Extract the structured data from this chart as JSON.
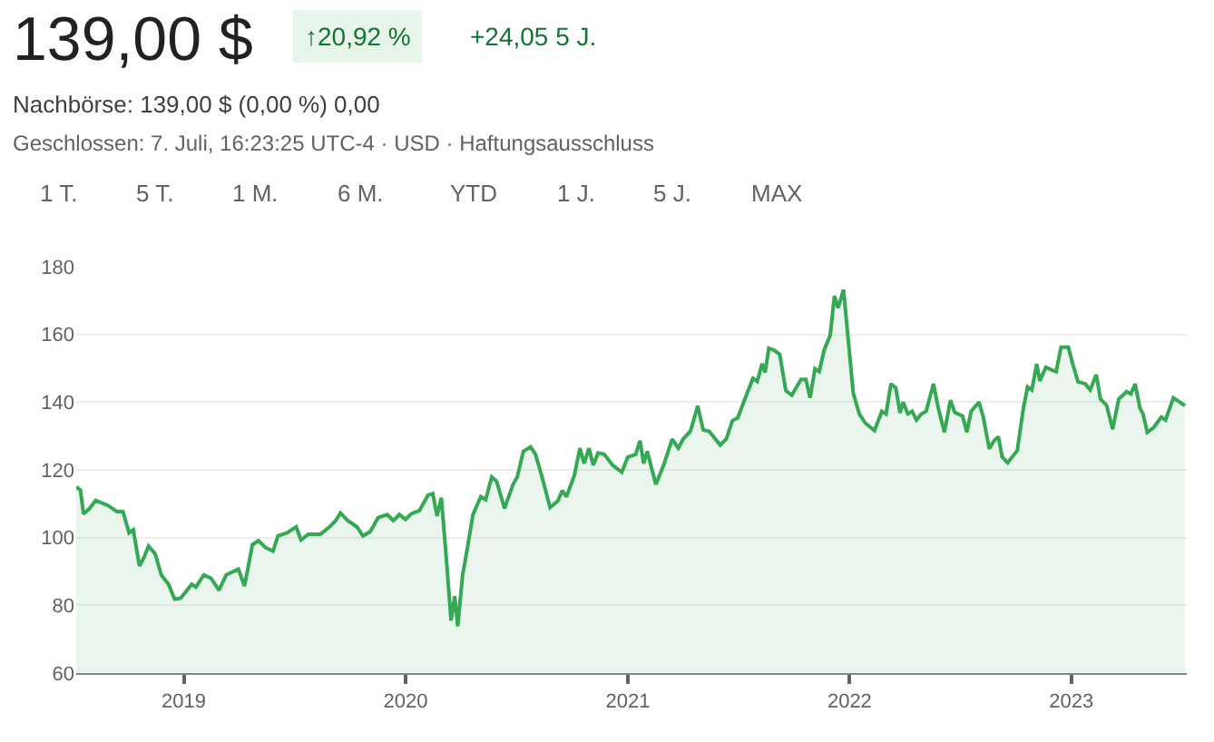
{
  "chart_data": {
    "type": "area",
    "title": "139,00 $",
    "annotations": [
      "↑20,92 %",
      "+24,05 5 J.",
      "Nachbörse: 139,00 $ (0,00 %) 0,00",
      "Geschlossen: 7. Juli, 16:23:25 UTC-4 · USD · Haftungsausschluss",
      "1 T.",
      "5 T.",
      "1 M.",
      "6 M.",
      "YTD",
      "1 J.",
      "5 J.",
      "MAX"
    ],
    "x": [
      "2018-07-08",
      "2018-07-15",
      "2018-07-20",
      "2018-07-30",
      "2018-08-09",
      "2018-08-29",
      "2018-09-13",
      "2018-09-23",
      "2018-10-03",
      "2018-10-10",
      "2018-10-20",
      "2018-10-28",
      "2018-11-04",
      "2018-11-15",
      "2018-11-25",
      "2018-12-07",
      "2018-12-17",
      "2018-12-27",
      "2019-01-14",
      "2019-01-21",
      "2019-02-03",
      "2019-02-15",
      "2019-02-28",
      "2019-03-12",
      "2019-04-01",
      "2019-04-11",
      "2019-04-24",
      "2019-05-04",
      "2019-05-16",
      "2019-05-28",
      "2019-06-05",
      "2019-06-20",
      "2019-07-05",
      "2019-07-13",
      "2019-07-25",
      "2019-08-14",
      "2019-08-29",
      "2019-09-08",
      "2019-09-16",
      "2019-09-28",
      "2019-10-13",
      "2019-10-23",
      "2019-11-04",
      "2019-11-17",
      "2019-12-02",
      "2019-12-12",
      "2019-12-22",
      "2020-01-01",
      "2020-01-11",
      "2020-01-24",
      "2020-02-07",
      "2020-02-15",
      "2020-02-22",
      "2020-02-29",
      "2020-03-08",
      "2020-03-16",
      "2020-03-22",
      "2020-03-27",
      "2020-04-04",
      "2020-04-11",
      "2020-04-21",
      "2020-05-04",
      "2020-05-12",
      "2020-05-22",
      "2020-05-30",
      "2020-06-12",
      "2020-06-26",
      "2020-07-03",
      "2020-07-13",
      "2020-07-25",
      "2020-08-02",
      "2020-08-12",
      "2020-08-26",
      "2020-09-08",
      "2020-09-15",
      "2020-09-22",
      "2020-10-05",
      "2020-10-14",
      "2020-10-21",
      "2020-10-29",
      "2020-11-05",
      "2020-11-13",
      "2020-11-23",
      "2020-12-07",
      "2020-12-22",
      "2021-01-01",
      "2021-01-14",
      "2021-01-21",
      "2021-01-27",
      "2021-02-02",
      "2021-02-16",
      "2021-03-01",
      "2021-03-15",
      "2021-03-25",
      "2021-04-02",
      "2021-04-14",
      "2021-04-26",
      "2021-05-05",
      "2021-05-15",
      "2021-06-02",
      "2021-06-12",
      "2021-06-22",
      "2021-07-01",
      "2021-07-16",
      "2021-07-26",
      "2021-08-02",
      "2021-08-10",
      "2021-08-15",
      "2021-08-21",
      "2021-08-29",
      "2021-09-08",
      "2021-09-18",
      "2021-09-28",
      "2021-10-13",
      "2021-10-21",
      "2021-10-28",
      "2021-11-05",
      "2021-11-12",
      "2021-11-20",
      "2021-11-30",
      "2021-12-07",
      "2021-12-13",
      "2021-12-22",
      "2021-12-30",
      "2022-01-07",
      "2022-01-17",
      "2022-01-27",
      "2022-02-11",
      "2022-02-23",
      "2022-03-02",
      "2022-03-10",
      "2022-03-18",
      "2022-03-25",
      "2022-03-30",
      "2022-04-07",
      "2022-04-14",
      "2022-04-21",
      "2022-04-29",
      "2022-05-07",
      "2022-05-19",
      "2022-05-27",
      "2022-06-06",
      "2022-06-16",
      "2022-06-23",
      "2022-07-06",
      "2022-07-13",
      "2022-07-20",
      "2022-08-02",
      "2022-08-09",
      "2022-08-19",
      "2022-08-27",
      "2022-09-03",
      "2022-09-09",
      "2022-09-18",
      "2022-10-04",
      "2022-10-14",
      "2022-10-21",
      "2022-10-28",
      "2022-11-05",
      "2022-11-10",
      "2022-11-20",
      "2022-11-30",
      "2022-12-07",
      "2022-12-15",
      "2022-12-27",
      "2023-01-04",
      "2023-01-12",
      "2023-01-24",
      "2023-02-01",
      "2023-02-11",
      "2023-02-18",
      "2023-02-28",
      "2023-03-10",
      "2023-03-20",
      "2023-04-02",
      "2023-04-09",
      "2023-04-16",
      "2023-04-24",
      "2023-04-29",
      "2023-05-06",
      "2023-05-16",
      "2023-05-29",
      "2023-06-05",
      "2023-06-18",
      "2023-07-07"
    ],
    "series": [
      {
        "color": "#34a853",
        "values": [
          115,
          114,
          107,
          108.6,
          111,
          109.5,
          107.7,
          107.7,
          101.4,
          102.3,
          91.6,
          94.3,
          97.5,
          95.2,
          89,
          86.2,
          81.8,
          82.1,
          86.2,
          85.4,
          89,
          88,
          84.5,
          89,
          90.7,
          85.7,
          97.9,
          99.1,
          97,
          96,
          100.5,
          101.4,
          103.2,
          99.3,
          101,
          101,
          103.2,
          105,
          107.3,
          105,
          103.2,
          100.5,
          101.8,
          105.9,
          106.8,
          105,
          106.8,
          105.4,
          107.1,
          108,
          112.5,
          113,
          106.4,
          111.8,
          94.3,
          75.5,
          82.7,
          73.8,
          89,
          96,
          106.8,
          112.1,
          111.2,
          117.9,
          116.6,
          108.6,
          115.7,
          117.9,
          125.5,
          126.8,
          124.6,
          118.4,
          108.9,
          110.9,
          113.9,
          112.1,
          118.4,
          126.4,
          121.9,
          126.4,
          121.4,
          125,
          124.6,
          121.4,
          119.3,
          123.8,
          124.6,
          128.6,
          121.9,
          125.5,
          115.7,
          121.4,
          129.1,
          126.4,
          129.1,
          131.4,
          138.9,
          131.8,
          131.4,
          127.3,
          129.1,
          134.5,
          135.4,
          142.5,
          147,
          146.1,
          151.4,
          148.8,
          155.9,
          155.4,
          154.1,
          143.4,
          142.1,
          146.7,
          146.7,
          141.3,
          149.9,
          149,
          155.3,
          159.7,
          171.4,
          167.8,
          173.2,
          158,
          142.7,
          136.5,
          133.8,
          131.6,
          137.3,
          136.5,
          145.4,
          144.2,
          136.8,
          140,
          136.5,
          137.3,
          134.7,
          136.5,
          137.3,
          145.4,
          138.2,
          131.1,
          140.6,
          137,
          135.9,
          131.1,
          137.3,
          140,
          135.6,
          126.2,
          128.7,
          129.8,
          123.9,
          122.1,
          125.7,
          138.2,
          144.5,
          143.6,
          151.3,
          146.3,
          150.3,
          149.5,
          149,
          156.2,
          156.2,
          150.8,
          146,
          145.4,
          143.6,
          148.1,
          140.9,
          139.1,
          132,
          140.9,
          143.1,
          142.4,
          145.4,
          138.2,
          136.5,
          131.1,
          132.4,
          135.6,
          134.7,
          141.3,
          139
        ]
      }
    ],
    "xlim": [
      "2018-07-08",
      "2023-07-10"
    ],
    "xticks": [
      "2019",
      "2020",
      "2021",
      "2022",
      "2023"
    ],
    "ylim": [
      60,
      180
    ],
    "yticks": [
      60,
      80,
      100,
      120,
      140,
      160,
      180
    ],
    "grid": "y"
  }
}
